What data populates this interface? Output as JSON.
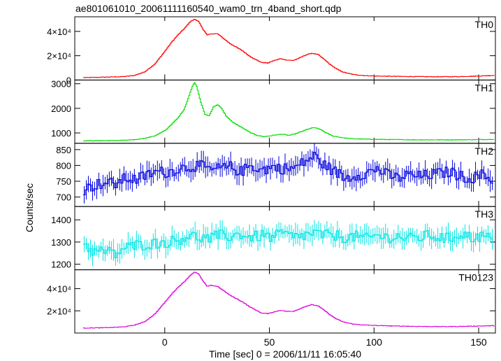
{
  "chart_data": {
    "type": "line",
    "title": "ae801061010_20061111160540_wam0_trn_4band_short.qdp",
    "xlabel": "Time [sec] 0 = 2006/11/11 16:05:40",
    "ylabel": "Counts/sec",
    "xlim": [
      -43,
      158
    ],
    "x_ticks": [
      0,
      50,
      100,
      150
    ],
    "x_tick_labels": [
      "0",
      "50",
      "100",
      "150"
    ],
    "panels": [
      {
        "name": "TH0",
        "color": "#ff0000",
        "ylim": [
          0,
          52000
        ],
        "y_ticks": [
          0,
          20000,
          40000
        ],
        "y_tick_labels": [
          "0",
          "2×10⁴",
          "4×10⁴"
        ],
        "error_bars": false,
        "x": [
          -39,
          -30,
          -20,
          -15,
          -10,
          -5,
          0,
          3,
          6,
          9,
          12,
          14,
          16,
          18,
          20,
          22,
          25,
          28,
          31,
          34,
          37,
          40,
          43,
          46,
          49,
          52,
          55,
          58,
          61,
          64,
          67,
          70,
          73,
          76,
          79,
          82,
          85,
          90,
          95,
          100,
          110,
          120,
          130,
          140,
          150,
          157
        ],
        "y": [
          2000,
          2300,
          2800,
          3700,
          6500,
          13000,
          24000,
          31000,
          37000,
          42000,
          48000,
          50000,
          48000,
          42000,
          37000,
          38000,
          38000,
          34000,
          30000,
          27000,
          24000,
          20000,
          17000,
          14500,
          14000,
          16000,
          17500,
          16500,
          16000,
          18000,
          20500,
          22000,
          21000,
          17000,
          12500,
          9000,
          6500,
          4500,
          3700,
          3300,
          3000,
          2800,
          2700,
          2800,
          3300,
          3800
        ]
      },
      {
        "name": "TH1",
        "color": "#00dd00",
        "ylim": [
          580,
          3150
        ],
        "y_ticks": [
          1000,
          2000,
          3000
        ],
        "y_tick_labels": [
          "1000",
          "2000",
          "3000"
        ],
        "error_bars": false,
        "x": [
          -39,
          -30,
          -20,
          -15,
          -10,
          -5,
          0,
          3,
          6,
          9,
          11,
          13,
          14,
          15,
          17,
          19,
          21,
          23,
          25,
          27,
          29,
          32,
          35,
          38,
          41,
          44,
          47,
          50,
          53,
          56,
          59,
          62,
          65,
          68,
          71,
          74,
          77,
          80,
          85,
          90,
          100,
          110,
          120,
          130,
          140,
          150,
          157
        ],
        "y": [
          680,
          690,
          700,
          720,
          780,
          880,
          1100,
          1350,
          1600,
          1950,
          2400,
          2900,
          3050,
          2900,
          2250,
          1750,
          1700,
          2050,
          2150,
          2000,
          1700,
          1450,
          1300,
          1150,
          1000,
          900,
          850,
          880,
          920,
          950,
          900,
          960,
          1050,
          1150,
          1220,
          1150,
          1000,
          880,
          800,
          760,
          740,
          730,
          720,
          720,
          720,
          730,
          740
        ]
      },
      {
        "name": "TH2",
        "color": "#0000dd",
        "ylim": [
          670,
          870
        ],
        "y_ticks": [
          700,
          750,
          800,
          850
        ],
        "y_tick_labels": [
          "700",
          "750",
          "800",
          "850"
        ],
        "error_bars": true,
        "x": [
          -39,
          -34,
          -29,
          -24,
          -19,
          -14,
          -9,
          -4,
          1,
          6,
          11,
          16,
          21,
          26,
          31,
          36,
          41,
          46,
          51,
          56,
          61,
          66,
          71,
          76,
          81,
          86,
          91,
          96,
          101,
          106,
          111,
          116,
          121,
          126,
          131,
          136,
          141,
          146,
          151,
          156
        ],
        "y": [
          722,
          738,
          745,
          742,
          760,
          755,
          770,
          780,
          778,
          790,
          795,
          800,
          785,
          790,
          795,
          780,
          800,
          785,
          795,
          790,
          790,
          810,
          830,
          800,
          780,
          760,
          770,
          775,
          790,
          770,
          760,
          770,
          765,
          770,
          775,
          780,
          765,
          760,
          770,
          755
        ]
      },
      {
        "name": "TH3",
        "color": "#00e5e5",
        "ylim": [
          1175,
          1460
        ],
        "y_ticks": [
          1200,
          1300,
          1400
        ],
        "y_tick_labels": [
          "1200",
          "1300",
          "1400"
        ],
        "error_bars": true,
        "x": [
          -39,
          -34,
          -29,
          -24,
          -19,
          -14,
          -9,
          -4,
          1,
          6,
          11,
          16,
          21,
          26,
          31,
          36,
          41,
          46,
          51,
          56,
          61,
          66,
          71,
          76,
          81,
          86,
          91,
          96,
          101,
          106,
          111,
          116,
          121,
          126,
          131,
          136,
          141,
          146,
          151,
          156
        ],
        "y": [
          1290,
          1255,
          1260,
          1245,
          1275,
          1285,
          1290,
          1295,
          1300,
          1310,
          1330,
          1320,
          1315,
          1330,
          1325,
          1335,
          1320,
          1330,
          1320,
          1340,
          1320,
          1330,
          1340,
          1330,
          1330,
          1320,
          1325,
          1315,
          1330,
          1320,
          1325,
          1315,
          1320,
          1330,
          1320,
          1315,
          1340,
          1320,
          1325,
          1315
        ]
      },
      {
        "name": "TH0123",
        "color": "#dd00dd",
        "ylim": [
          0,
          57000
        ],
        "y_ticks": [
          20000,
          40000
        ],
        "y_tick_labels": [
          "2×10⁴",
          "4×10⁴"
        ],
        "error_bars": false,
        "x": [
          -39,
          -30,
          -20,
          -15,
          -10,
          -5,
          0,
          3,
          6,
          9,
          12,
          14,
          16,
          18,
          20,
          22,
          25,
          28,
          31,
          34,
          37,
          40,
          43,
          46,
          49,
          52,
          55,
          58,
          61,
          64,
          67,
          70,
          73,
          76,
          79,
          82,
          85,
          90,
          95,
          100,
          110,
          120,
          130,
          140,
          150,
          157
        ],
        "y": [
          4500,
          4700,
          5500,
          7000,
          10000,
          17000,
          28000,
          35000,
          41000,
          46000,
          52000,
          55000,
          53000,
          47000,
          42000,
          43000,
          42000,
          38000,
          34000,
          31000,
          28000,
          24000,
          21000,
          18000,
          17500,
          19000,
          20500,
          19500,
          19500,
          21500,
          24000,
          25500,
          24500,
          20500,
          16000,
          12500,
          10000,
          8000,
          7200,
          6800,
          6300,
          6000,
          5800,
          5900,
          6300,
          6600
        ]
      }
    ]
  }
}
